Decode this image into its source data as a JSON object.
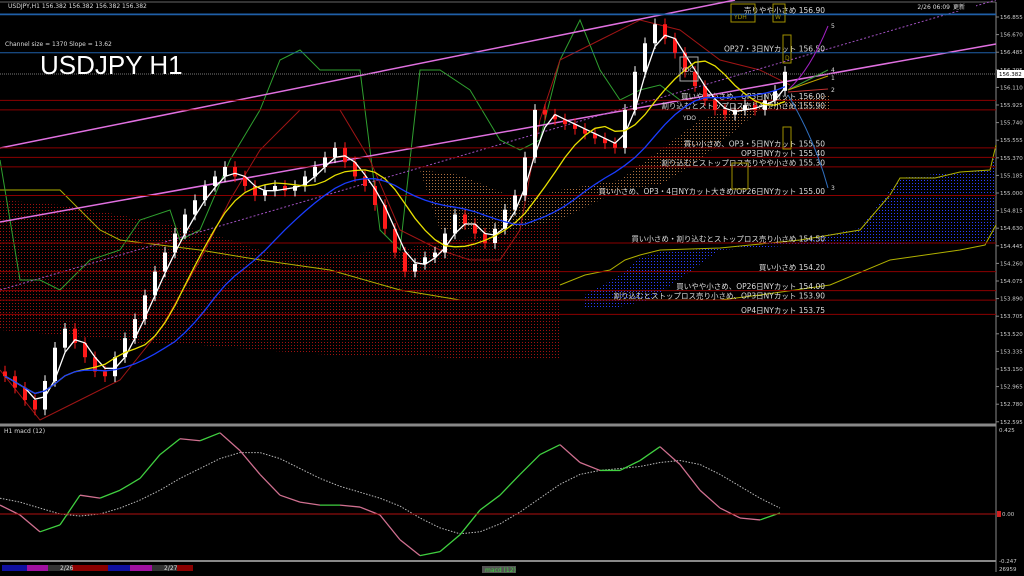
{
  "header": {
    "symbol_line": "USDJPY,H1  156.382 156.382 156.382 156.382",
    "channel_info": "Channel size = 1370 Slope = 13.62",
    "big_title": "USDJPY H1",
    "timestamp": "2/26 06:09",
    "timestamp_tag": "更新"
  },
  "macd_pane": {
    "label": "H1  macd (12)",
    "axis_top": "0.425",
    "axis_zero": "0.00",
    "axis_bottom": "-0.247",
    "corner": "26959",
    "tab_label": "macd (12)"
  },
  "time_axis": {
    "labels": [
      "2/26",
      "2/27"
    ]
  },
  "colors": {
    "background": "#000000",
    "bull_candle": "#ffffff",
    "bear_candle": "#ff1a1a",
    "level_line": "#8b0000",
    "blue_level": "#1f5fa8",
    "channel": "#e070e0",
    "ma_fast": "#ffffff",
    "ma_mid": "#e8e000",
    "ma_slow": "#1a3cff",
    "macd_up": "#40d040",
    "macd_down": "#d07090",
    "cloud_span": "#b0b000"
  },
  "markers": {
    "ydh": "YDH",
    "w": "W",
    "d": "D",
    "ydc": "YDC",
    "ydo": "YDO",
    "proj": [
      "5",
      "4",
      "1",
      "2",
      "3"
    ]
  },
  "levels": [
    {
      "price": 156.9,
      "label": "売りやや小さめ 156.90",
      "kind": "blue"
    },
    {
      "price": 156.5,
      "label": "OP27・3日NYカット 156.50",
      "kind": "blue"
    },
    {
      "price": 156.0,
      "label": "買いやや小さめ、OP3日NYカット 156.00",
      "kind": "red"
    },
    {
      "price": 155.9,
      "label": "割り込むとストップロス売りやや小さめ 155.90",
      "kind": "red"
    },
    {
      "price": 155.5,
      "label": "買い小さめ、OP3・5日NYカット 155.50",
      "kind": "red"
    },
    {
      "price": 155.4,
      "label": "OP3日NYカット 155.40",
      "kind": "red"
    },
    {
      "price": 155.3,
      "label": "割り込むとストップロス売りやや小さめ 155.30",
      "kind": "red"
    },
    {
      "price": 155.0,
      "label": "買い小さめ、OP3・4日NYカット大きめ/OP26日NYカット 155.00",
      "kind": "red"
    },
    {
      "price": 154.5,
      "label": "買い小さめ・割り込むとストップロス売り小さめ 154.50",
      "kind": "red"
    },
    {
      "price": 154.2,
      "label": "買い小さめ 154.20",
      "kind": "red"
    },
    {
      "price": 154.0,
      "label": "買いやや小さめ、OP26日NYカット 154.00",
      "kind": "red"
    },
    {
      "price": 153.9,
      "label": "割り込むとストップロス売り小さめ、OP3日NYカット 153.90",
      "kind": "red"
    },
    {
      "price": 153.75,
      "label": "OP4日NYカット 153.75",
      "kind": "red"
    }
  ],
  "chart_data": [
    {
      "type": "candlestick",
      "title": "USDJPY H1",
      "current_price": "156.382",
      "y_ticks": [
        "156.855",
        "156.670",
        "156.485",
        "156.295",
        "156.110",
        "155.925",
        "155.740",
        "155.555",
        "155.370",
        "155.185",
        "155.000",
        "154.815",
        "154.630",
        "154.445",
        "154.260",
        "154.075",
        "153.890",
        "153.705",
        "153.520",
        "153.335",
        "153.150",
        "152.965",
        "152.780",
        "152.595"
      ],
      "ylim": [
        152.595,
        156.855
      ],
      "closes": [
        153.1,
        152.98,
        152.85,
        152.75,
        153.05,
        153.4,
        153.6,
        153.45,
        153.3,
        153.15,
        153.1,
        153.3,
        153.5,
        153.7,
        153.95,
        154.2,
        154.4,
        154.6,
        154.8,
        154.95,
        155.1,
        155.2,
        155.3,
        155.2,
        155.1,
        155.0,
        155.05,
        155.1,
        155.05,
        155.1,
        155.2,
        155.3,
        155.4,
        155.5,
        155.35,
        155.2,
        155.1,
        154.9,
        154.65,
        154.4,
        154.2,
        154.28,
        154.35,
        154.4,
        154.6,
        154.8,
        154.7,
        154.6,
        154.5,
        154.65,
        154.85,
        155.0,
        155.4,
        155.9,
        155.85,
        155.8,
        155.75,
        155.7,
        155.65,
        155.6,
        155.55,
        155.5,
        155.9,
        156.3,
        156.6,
        156.8,
        156.65,
        156.5,
        156.3,
        156.15,
        156.0,
        155.9,
        155.85,
        155.9,
        155.95,
        155.9,
        156.0,
        156.1,
        156.3
      ]
    },
    {
      "type": "line",
      "title": "macd (12)",
      "ylim": [
        -0.247,
        0.425
      ],
      "series": [
        {
          "values": [
            0.045,
            -0.005,
            -0.09,
            -0.055,
            0.095,
            0.08,
            0.12,
            0.18,
            0.3,
            0.38,
            0.37,
            0.41,
            0.32,
            0.2,
            0.095,
            0.06,
            0.045,
            0.045,
            0.035,
            -0.005,
            -0.13,
            -0.21,
            -0.19,
            -0.105,
            0.02,
            0.095,
            0.2,
            0.3,
            0.35,
            0.26,
            0.22,
            0.22,
            0.27,
            0.34,
            0.25,
            0.12,
            0.03,
            -0.02,
            -0.03,
            0.005
          ]
        },
        {
          "values": [
            0.08,
            0.06,
            0.03,
            0.0,
            -0.01,
            0.0,
            0.03,
            0.07,
            0.12,
            0.18,
            0.23,
            0.28,
            0.31,
            0.31,
            0.28,
            0.23,
            0.18,
            0.14,
            0.11,
            0.08,
            0.04,
            -0.02,
            -0.07,
            -0.1,
            -0.09,
            -0.05,
            0.01,
            0.08,
            0.15,
            0.2,
            0.22,
            0.23,
            0.24,
            0.26,
            0.27,
            0.25,
            0.2,
            0.14,
            0.08,
            0.03
          ]
        }
      ]
    }
  ]
}
